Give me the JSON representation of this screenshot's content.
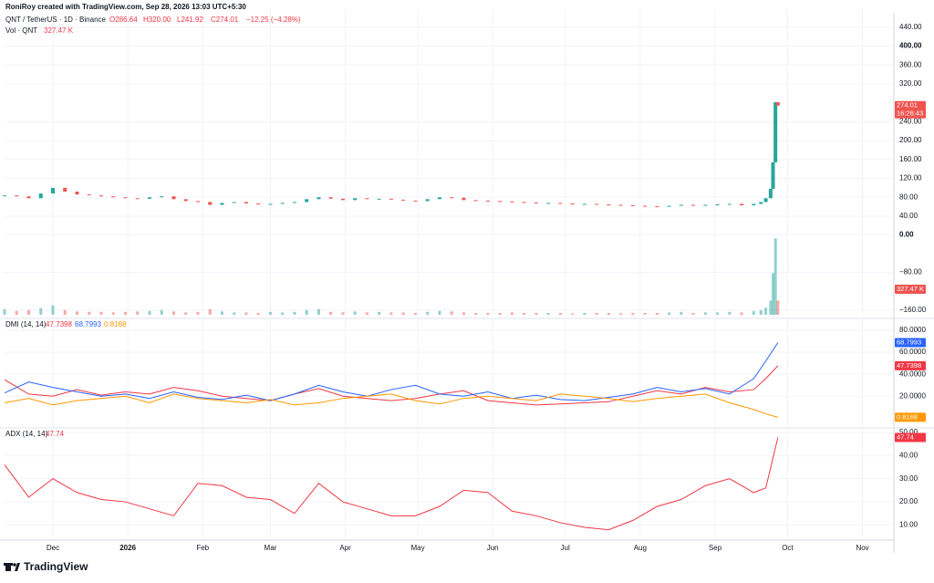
{
  "header": {
    "credit": "RoniRoy created with TradingView.com, Sep 28, 2026 13:03 UTC+5:30",
    "ohlc": [
      "O286.64",
      "H320.00",
      "L241.92",
      "C274.01"
    ],
    "change": "−12.25 (−4.28%)"
  },
  "chart_data": [
    {
      "type": "candlestick",
      "title": "QNT / TetherUS · 1D · Binance",
      "countdown": "16:26:43",
      "colors": {
        "up": "#26a69a",
        "down": "#ef5350"
      },
      "x": [
        -20,
        -15,
        -10,
        -5,
        0,
        5,
        10,
        15,
        20,
        25,
        30,
        35,
        40,
        45,
        50,
        55,
        60,
        65,
        70,
        75,
        80,
        85,
        90,
        95,
        100,
        105,
        110,
        115,
        120,
        125,
        130,
        135,
        140,
        145,
        150,
        155,
        160,
        165,
        170,
        175,
        180,
        185,
        190,
        195,
        200,
        205,
        210,
        215,
        220,
        225,
        230,
        235,
        240,
        245,
        250,
        255,
        260,
        265,
        270,
        275,
        280,
        285,
        290,
        293,
        295,
        297,
        298,
        299,
        300
      ],
      "values": [
        84,
        82,
        78,
        88,
        100,
        92,
        86,
        84,
        82,
        80,
        78,
        77,
        80,
        82,
        76,
        72,
        70,
        64,
        68,
        70,
        67,
        65,
        66,
        68,
        70,
        76,
        80,
        77,
        74,
        78,
        76,
        77,
        75,
        73,
        72,
        76,
        80,
        79,
        74,
        73,
        72,
        71,
        70,
        69,
        68,
        68,
        67,
        66,
        66,
        65,
        64,
        63,
        62,
        61,
        60,
        62,
        64,
        62,
        64,
        65,
        66,
        63,
        66,
        70,
        78,
        98,
        154,
        281,
        274.01
      ],
      "xlim": [
        -20,
        348
      ],
      "xticks": [
        {
          "value": 0,
          "label": "Dec"
        },
        {
          "value": 31,
          "label": "2026"
        },
        {
          "value": 62,
          "label": "Feb"
        },
        {
          "value": 90,
          "label": "Mar"
        },
        {
          "value": 121,
          "label": "Apr"
        },
        {
          "value": 151,
          "label": "May"
        },
        {
          "value": 182,
          "label": "Jun"
        },
        {
          "value": 212,
          "label": "Jul"
        },
        {
          "value": 243,
          "label": "Aug"
        },
        {
          "value": 274,
          "label": "Sep"
        },
        {
          "value": 304,
          "label": "Oct"
        },
        {
          "value": 335,
          "label": "Nov"
        }
      ],
      "ylim": [
        11,
        478
      ],
      "yticks": [
        {
          "value": 40,
          "label": "40.00"
        },
        {
          "value": 80,
          "label": "80.00"
        },
        {
          "value": 120,
          "label": "120.00"
        },
        {
          "value": 160,
          "label": "160.00"
        },
        {
          "value": 200,
          "label": "200.00"
        },
        {
          "value": 240,
          "label": "240.00"
        },
        {
          "value": 320,
          "label": "320.00"
        },
        {
          "value": 360,
          "label": "360.00"
        },
        {
          "value": 400,
          "label": "400.00"
        },
        {
          "value": 440,
          "label": "440.00"
        }
      ]
    },
    {
      "type": "volume",
      "title": "Vol · QNT",
      "last_label": "327.47 K",
      "x": [
        -20,
        -15,
        -10,
        -5,
        0,
        5,
        10,
        15,
        20,
        25,
        30,
        35,
        40,
        45,
        50,
        55,
        60,
        65,
        70,
        75,
        80,
        85,
        90,
        95,
        100,
        105,
        110,
        115,
        120,
        125,
        130,
        135,
        140,
        145,
        150,
        155,
        160,
        165,
        170,
        175,
        180,
        185,
        190,
        195,
        200,
        205,
        210,
        215,
        220,
        225,
        230,
        235,
        240,
        245,
        250,
        255,
        260,
        265,
        270,
        275,
        280,
        285,
        290,
        293,
        295,
        297,
        298,
        299,
        300
      ],
      "values": [
        -158,
        -162,
        -160,
        -156,
        -150,
        -160,
        -163,
        -164,
        -164,
        -165,
        -164,
        -163,
        -162,
        -160,
        -163,
        -165,
        -164,
        -158,
        -163,
        -165,
        -165,
        -166,
        -164,
        -165,
        -164,
        -160,
        -158,
        -164,
        -165,
        -163,
        -165,
        -164,
        -165,
        -165,
        -166,
        -164,
        -162,
        -163,
        -165,
        -166,
        -166,
        -166,
        -165,
        -166,
        -166,
        -166,
        -166,
        -167,
        -166,
        -166,
        -166,
        -167,
        -166,
        -166,
        -166,
        -165,
        -164,
        -166,
        -165,
        -165,
        -164,
        -165,
        -162,
        -160,
        -155,
        -140,
        -82,
        -8,
        -140
      ],
      "ylim": [
        -170,
        10
      ],
      "yticks": [
        {
          "value": 0,
          "label": "0.00"
        },
        {
          "value": -80,
          "label": "−80.00"
        },
        {
          "value": -160,
          "label": "−160.00"
        }
      ]
    },
    {
      "type": "line",
      "title": "DMI (14, 14)",
      "x": [
        -20,
        -10,
        0,
        10,
        20,
        30,
        40,
        50,
        60,
        70,
        80,
        90,
        100,
        110,
        120,
        130,
        140,
        150,
        160,
        170,
        180,
        190,
        200,
        210,
        220,
        230,
        240,
        250,
        260,
        270,
        280,
        290,
        295,
        300
      ],
      "series": [
        {
          "color": "#f23645",
          "values": [
            35,
            22,
            20,
            26,
            21,
            24,
            22,
            28,
            25,
            20,
            18,
            16,
            22,
            27,
            20,
            18,
            16,
            18,
            22,
            25,
            16,
            14,
            12,
            13,
            14,
            15,
            20,
            25,
            22,
            28,
            24,
            26,
            36,
            47.7398
          ]
        },
        {
          "color": "#2962ff",
          "values": [
            23,
            33,
            28,
            24,
            20,
            22,
            18,
            24,
            19,
            17,
            21,
            16,
            22,
            30,
            24,
            20,
            26,
            30,
            22,
            20,
            24,
            18,
            21,
            17,
            16,
            19,
            22,
            28,
            24,
            27,
            22,
            36,
            52,
            68.7993
          ]
        },
        {
          "color": "#ff9800",
          "values": [
            14,
            18,
            12,
            16,
            18,
            20,
            14,
            22,
            18,
            16,
            14,
            17,
            12,
            14,
            18,
            20,
            22,
            16,
            13,
            18,
            20,
            18,
            16,
            22,
            20,
            18,
            15,
            18,
            20,
            22,
            14,
            8,
            4,
            0.8168
          ]
        }
      ],
      "ylim": [
        -8,
        90
      ],
      "yticks": [
        {
          "value": 20,
          "label": "20.0000"
        },
        {
          "value": 40,
          "label": "40.0000"
        },
        {
          "value": 60,
          "label": "60.0000"
        },
        {
          "value": 80,
          "label": "80.0000"
        }
      ]
    },
    {
      "type": "line",
      "title": "ADX (14, 14)",
      "x": [
        -20,
        -10,
        0,
        10,
        20,
        30,
        40,
        50,
        60,
        70,
        80,
        90,
        100,
        110,
        120,
        130,
        140,
        150,
        160,
        170,
        180,
        190,
        200,
        210,
        220,
        230,
        240,
        250,
        260,
        270,
        280,
        290,
        295,
        300
      ],
      "series": [
        {
          "color": "#f23645",
          "values": [
            36,
            22,
            30,
            24,
            21,
            20,
            17,
            14,
            28,
            27,
            22,
            21,
            15,
            28,
            20,
            17,
            14,
            14,
            18,
            25,
            24,
            16,
            14,
            11,
            9,
            8,
            12,
            18,
            21,
            27,
            30,
            24,
            26,
            47.74
          ]
        }
      ],
      "ylim": [
        3.5,
        51.5
      ],
      "yticks": [
        {
          "value": 10,
          "label": "10.00"
        },
        {
          "value": 20,
          "label": "20.00"
        },
        {
          "value": 30,
          "label": "30.00"
        },
        {
          "value": 40,
          "label": "40.00"
        },
        {
          "value": 50,
          "label": "50.00"
        }
      ]
    }
  ],
  "footer": {
    "logo": "TradingView"
  }
}
